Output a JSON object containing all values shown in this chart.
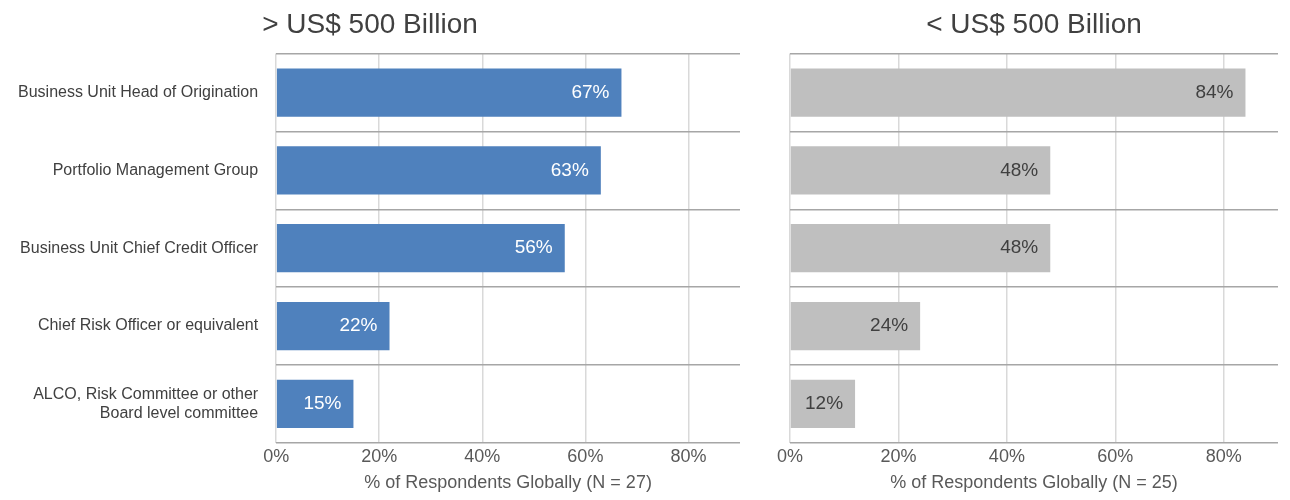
{
  "chart_data": [
    {
      "type": "bar",
      "orientation": "horizontal",
      "title": "> US$ 500 Billion",
      "xlabel": "% of Respondents Globally (N = 27)",
      "categories": [
        "Business Unit Head of Origination",
        "Portfolio Management Group",
        "Business Unit Chief Credit Officer",
        "Chief Risk Officer or equivalent",
        "ALCO, Risk Committee or other Board level committee"
      ],
      "series": [
        {
          "color": "#4f81bd",
          "values": [
            67,
            63,
            56,
            22,
            15
          ],
          "value_labels": [
            "67%",
            "63%",
            "56%",
            "22%",
            "15%"
          ]
        }
      ],
      "xlim": [
        0,
        90
      ],
      "xticks": [
        {
          "value": 0,
          "label": "0%"
        },
        {
          "value": 20,
          "label": "20%"
        },
        {
          "value": 40,
          "label": "40%"
        },
        {
          "value": 60,
          "label": "60%"
        },
        {
          "value": 80,
          "label": "80%"
        }
      ],
      "grid": true,
      "legend": false
    },
    {
      "type": "bar",
      "orientation": "horizontal",
      "title": "< US$ 500 Billion",
      "xlabel": "% of Respondents Globally (N = 25)",
      "categories": [
        null,
        null,
        null,
        null,
        null
      ],
      "series": [
        {
          "color": "#bfbfbf",
          "values": [
            84,
            48,
            48,
            24,
            12
          ],
          "value_labels": [
            "84%",
            "48%",
            "48%",
            "24%",
            "12%"
          ]
        }
      ],
      "xlim": [
        0,
        90
      ],
      "xticks": [
        {
          "value": 0,
          "label": "0%"
        },
        {
          "value": 20,
          "label": "20%"
        },
        {
          "value": 40,
          "label": "40%"
        },
        {
          "value": 60,
          "label": "60%"
        },
        {
          "value": 80,
          "label": "80%"
        }
      ],
      "grid": true,
      "legend": false,
      "tick_labels": "x"
    }
  ]
}
